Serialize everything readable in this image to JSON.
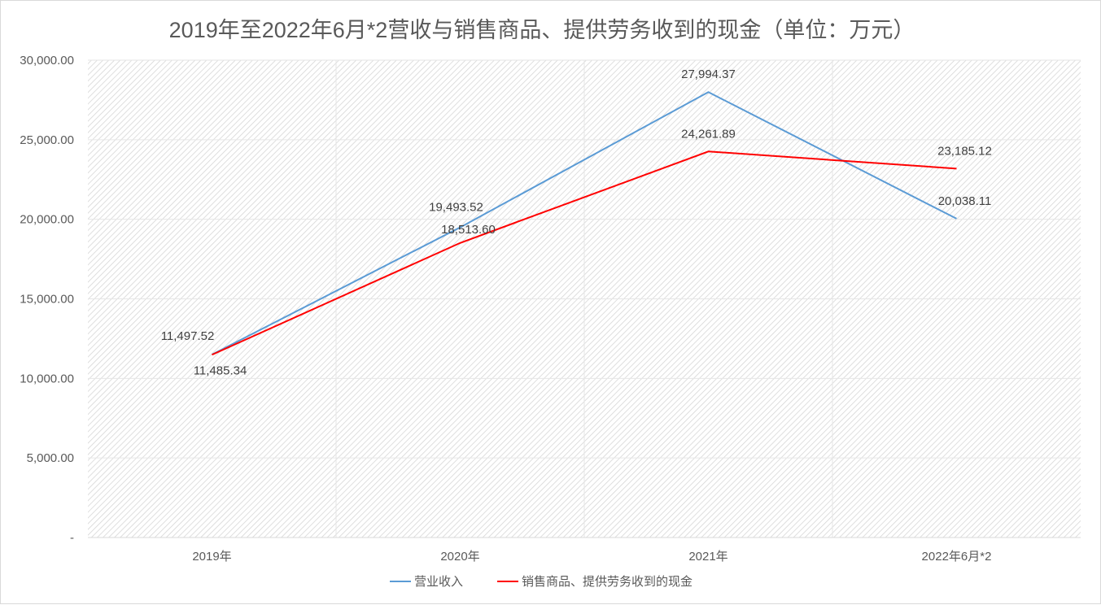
{
  "chart_data": {
    "type": "line",
    "title": "2019年至2022年6月*2营收与销售商品、提供劳务收到的现金（单位：万元）",
    "categories": [
      "2019年",
      "2020年",
      "2021年",
      "2022年6月*2"
    ],
    "ylim": [
      0,
      30000
    ],
    "yticks": [
      "-",
      "5,000.00",
      "10,000.00",
      "15,000.00",
      "20,000.00",
      "25,000.00",
      "30,000.00"
    ],
    "grid": true,
    "legend": "bottom",
    "series": [
      {
        "name": "营业收入",
        "color": "#5b9bd5",
        "values": [
          11497.52,
          19493.52,
          27994.37,
          20038.11
        ],
        "labels": [
          "11,497.52",
          "19,493.52",
          "27,994.37",
          "20,038.11"
        ]
      },
      {
        "name": "销售商品、提供劳务收到的现金",
        "color": "#ff0000",
        "values": [
          11485.34,
          18513.6,
          24261.89,
          23185.12
        ],
        "labels": [
          "11,485.34",
          "18,513.60",
          "24,261.89",
          "23,185.12"
        ]
      }
    ]
  }
}
